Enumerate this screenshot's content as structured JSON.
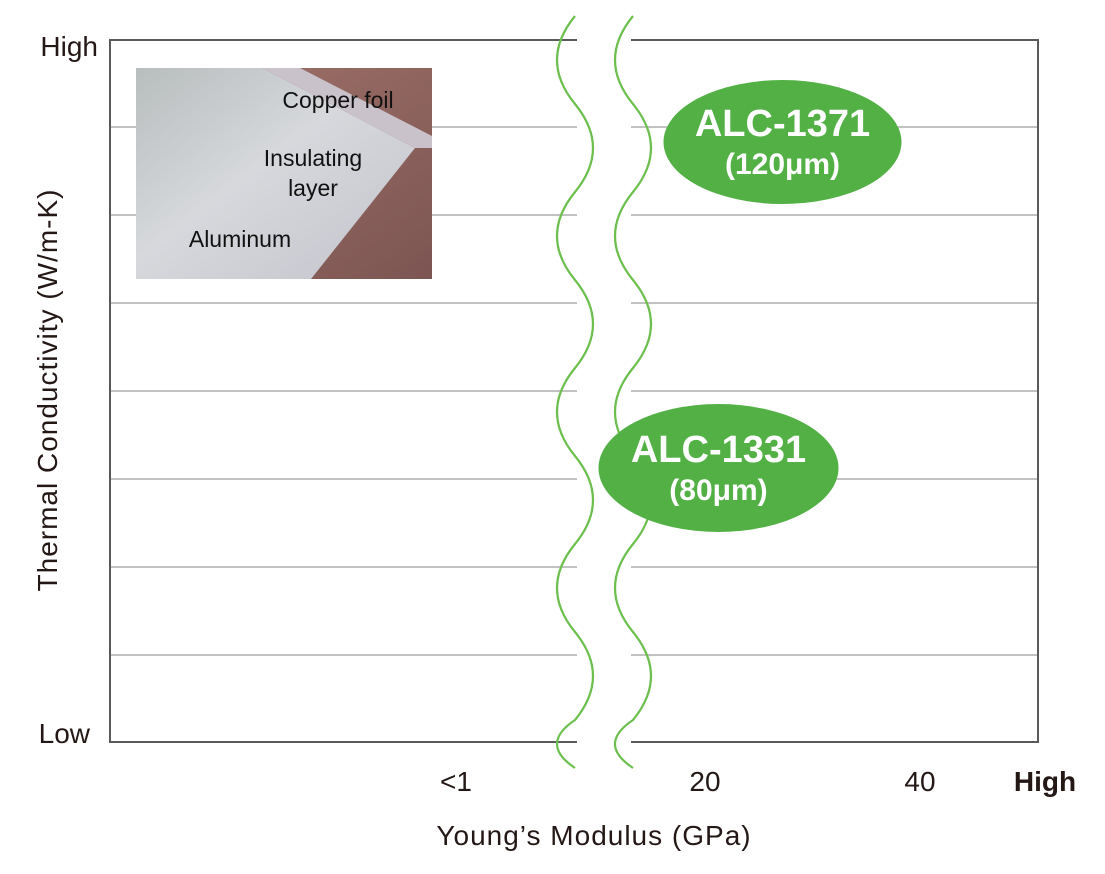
{
  "chart_data": {
    "type": "scatter",
    "title": "",
    "xlabel": "Young’s Modulus (GPa)",
    "ylabel": "Thermal Conductivity (W/m-K)",
    "y_tick_labels": {
      "top": "High",
      "bottom": "Low"
    },
    "x_tick_labels": [
      "<1",
      "20",
      "40",
      "High"
    ],
    "x_axis_break": "wavy break between <1 and 20",
    "grid": true,
    "points": [
      {
        "label": "ALC-1371",
        "thickness": "(120μm)",
        "x": 30,
        "y": "high"
      },
      {
        "label": "ALC-1331",
        "thickness": "(80μm)",
        "x": 22,
        "y": "medium"
      }
    ],
    "inset_photo_labels": [
      "Copper foil",
      "Insulating layer",
      "Aluminum"
    ],
    "colors": {
      "bubble": "#52b045",
      "break_line": "#6cbf4f",
      "grid": "#9d9d9d",
      "frame": "#5a5a5a"
    }
  }
}
